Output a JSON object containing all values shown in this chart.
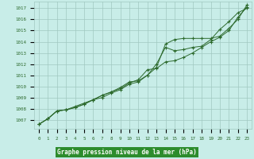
{
  "x": [
    0,
    1,
    2,
    3,
    4,
    5,
    6,
    7,
    8,
    9,
    10,
    11,
    12,
    13,
    14,
    15,
    16,
    17,
    18,
    19,
    20,
    21,
    22,
    23
  ],
  "line1": [
    1006.6,
    1007.1,
    1007.8,
    1007.9,
    1008.1,
    1008.4,
    1008.8,
    1009.2,
    1009.5,
    1009.8,
    1010.3,
    1010.6,
    1011.5,
    1011.6,
    1012.2,
    1012.3,
    1012.6,
    1013.0,
    1013.5,
    1014.0,
    1014.4,
    1015.0,
    1016.2,
    1017.1
  ],
  "line2": [
    1006.6,
    1007.1,
    1007.8,
    1007.9,
    1008.2,
    1008.5,
    1008.8,
    1009.2,
    1009.5,
    1009.9,
    1010.4,
    1010.5,
    1011.0,
    1011.7,
    1013.8,
    1014.2,
    1014.3,
    1014.3,
    1014.3,
    1014.3,
    1014.5,
    1015.2,
    1016.0,
    1017.3
  ],
  "line3": [
    1006.6,
    1007.1,
    1007.8,
    1007.9,
    1008.1,
    1008.4,
    1008.8,
    1009.0,
    1009.4,
    1009.7,
    1010.2,
    1010.4,
    1011.0,
    1012.0,
    1013.5,
    1013.2,
    1013.3,
    1013.5,
    1013.6,
    1014.2,
    1015.1,
    1015.8,
    1016.6,
    1017.0
  ],
  "line_color": "#2d6a2d",
  "bg_color": "#c8ede8",
  "grid_color": "#a0c8c0",
  "xlabel": "Graphe pression niveau de la mer (hPa)",
  "xlabel_color": "#1a4a1a",
  "xlabel_bg": "#2d8c2d",
  "ylabel_ticks": [
    1007,
    1008,
    1009,
    1010,
    1011,
    1012,
    1013,
    1014,
    1015,
    1016,
    1017
  ],
  "ylim": [
    1006.2,
    1017.6
  ],
  "xlim": [
    -0.5,
    23.5
  ]
}
